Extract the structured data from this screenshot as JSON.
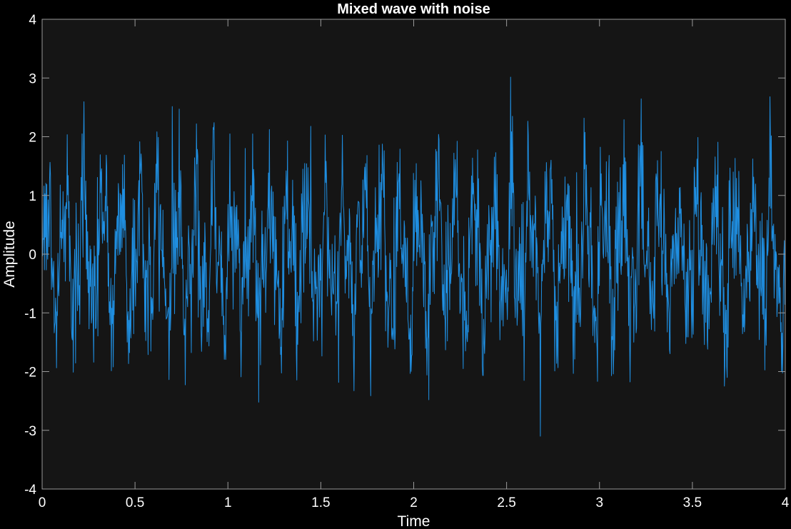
{
  "chart_data": {
    "type": "line",
    "title": "Mixed wave with noise",
    "xlabel": "Time",
    "ylabel": "Amplitude",
    "xlim": [
      0,
      4
    ],
    "ylim": [
      -4,
      4
    ],
    "x_ticks": [
      0,
      0.5,
      1,
      1.5,
      2,
      2.5,
      3,
      3.5,
      4
    ],
    "y_ticks": [
      -4,
      -3,
      -2,
      -1,
      0,
      1,
      2,
      3,
      4
    ],
    "x_tick_labels": [
      "0",
      "0.5",
      "1",
      "1.5",
      "2",
      "2.5",
      "3",
      "3.5",
      "4"
    ],
    "y_tick_labels": [
      "-4",
      "-3",
      "-2",
      "-1",
      "0",
      "1",
      "2",
      "3",
      "4"
    ],
    "grid": false,
    "legend": "none",
    "series": [
      {
        "color": "#1f8ee0",
        "x_start": 0,
        "x_end": 4,
        "points": 1600,
        "observed_max": 3.35,
        "observed_min": -3.1,
        "typical_range": [
          -2.5,
          2.5
        ]
      }
    ]
  },
  "colors": {
    "background": "#000000",
    "axes_background": "#151515",
    "axes_edge": "#9a9a9a",
    "text": "#ffffff",
    "line": "#1f8ee0"
  }
}
